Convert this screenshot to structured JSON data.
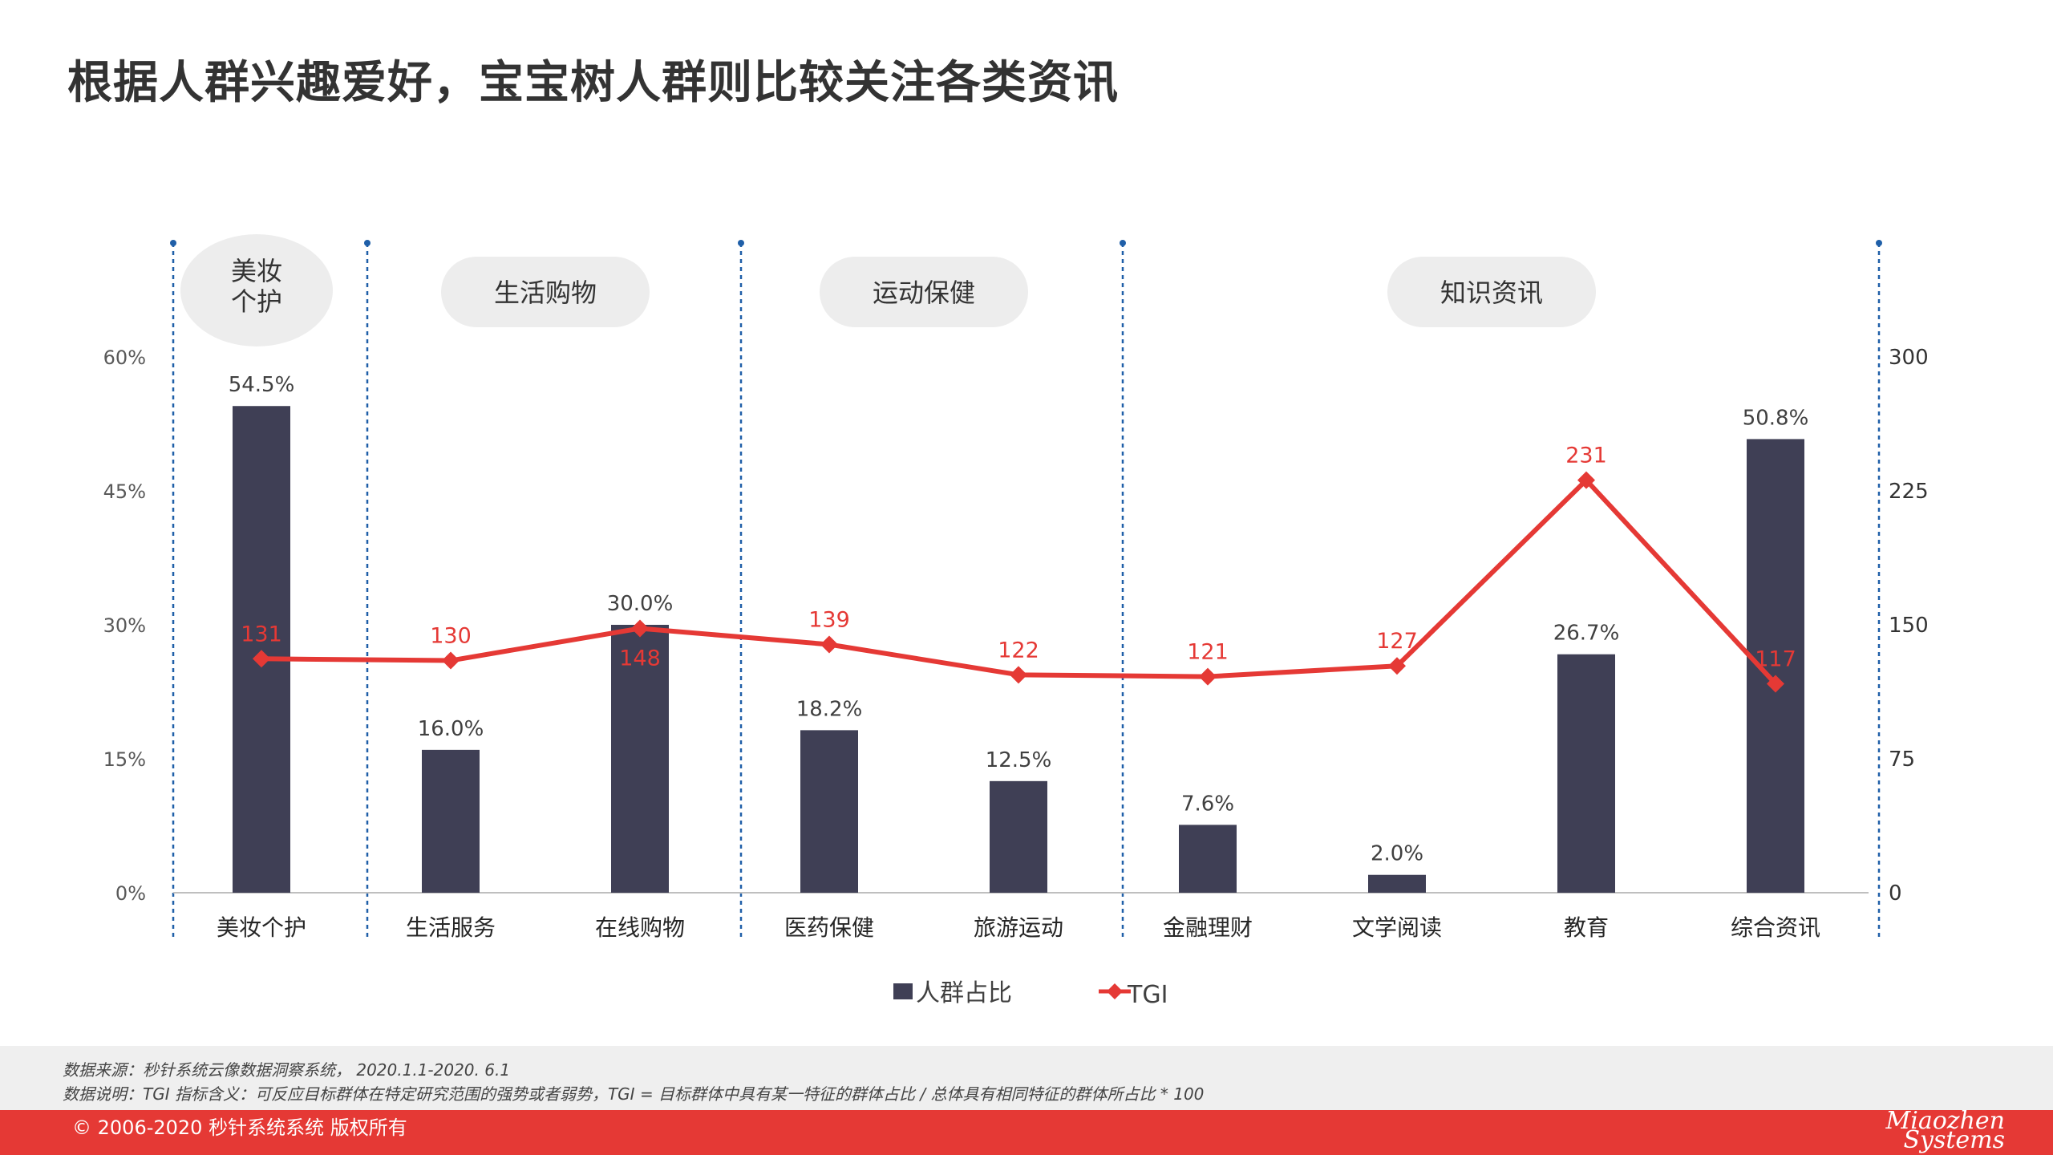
{
  "title": "根据人群兴趣爱好，宝宝树人群则比较关注各类资讯",
  "colors": {
    "bar": "#3f3f55",
    "line": "#e53935",
    "group_bg": "#ededed",
    "divider": "#1f5fa8"
  },
  "groups": [
    {
      "label": "美妆\n个护",
      "label_lines": [
        "美妆",
        "个护"
      ]
    },
    {
      "label": "生活购物",
      "label_lines": [
        "生活购物"
      ]
    },
    {
      "label": "运动保健",
      "label_lines": [
        "运动保健"
      ]
    },
    {
      "label": "知识资讯",
      "label_lines": [
        "知识资讯"
      ]
    }
  ],
  "chart_data": {
    "type": "bar",
    "categories": [
      "美妆个护",
      "生活服务",
      "在线购物",
      "医药保健",
      "旅游运动",
      "金融理财",
      "文学阅读",
      "教育",
      "综合资讯"
    ],
    "category_groups": [
      0,
      1,
      1,
      2,
      2,
      3,
      3,
      3,
      3
    ],
    "series": [
      {
        "name": "人群占比",
        "type": "bar",
        "axis": "left",
        "values": [
          54.5,
          16.0,
          30.0,
          18.2,
          12.5,
          7.6,
          2.0,
          26.7,
          50.8
        ],
        "labels": [
          "54.5%",
          "16.0%",
          "30.0%",
          "18.2%",
          "12.5%",
          "7.6%",
          "2.0%",
          "26.7%",
          "50.8%"
        ]
      },
      {
        "name": "TGI",
        "type": "line",
        "axis": "right",
        "values": [
          131,
          130,
          148,
          139,
          122,
          121,
          127,
          231,
          117
        ],
        "labels": [
          "131",
          "130",
          "148",
          "139",
          "122",
          "121",
          "127",
          "231",
          "117"
        ]
      }
    ],
    "y_left": {
      "ylim": [
        0,
        60
      ],
      "ticks": [
        "0%",
        "15%",
        "30%",
        "45%",
        "60%"
      ]
    },
    "y_right": {
      "ylim": [
        0,
        300
      ],
      "ticks": [
        "0",
        "75",
        "150",
        "225",
        "300"
      ]
    },
    "legend_position": "bottom",
    "grid": false
  },
  "source": {
    "line1": "数据来源：秒针系统云像数据洞察系统， 2020.1.1-2020. 6.1",
    "line2": "数据说明：TGI 指标含义：可反应目标群体在特定研究范围的强势或者弱势，TGI = 目标群体中具有某一特征的群体占比 / 总体具有相同特征的群体所占比 * 100"
  },
  "footer": {
    "copyright": "© 2006-2020 秒针系统系统 版权所有",
    "brand_line1": "Miaozhen",
    "brand_line2": "Systems"
  }
}
